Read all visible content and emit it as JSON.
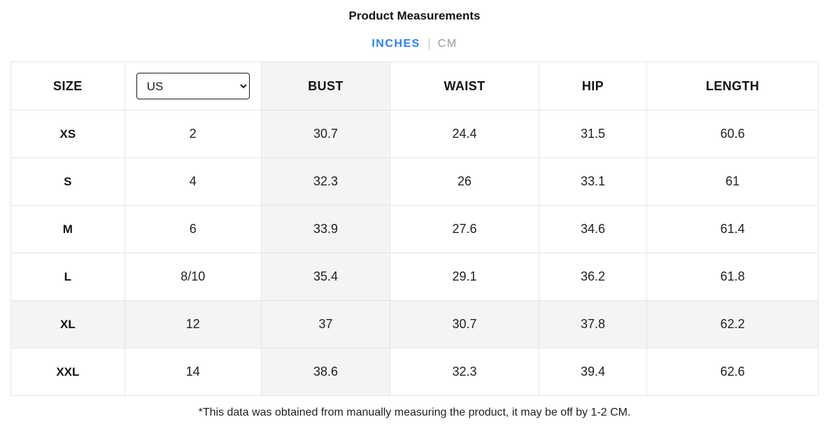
{
  "page": {
    "title": "Product Measurements",
    "unit_toggle": {
      "inches_label": "INCHES",
      "cm_label": "CM",
      "active_unit": "INCHES"
    },
    "footnote": "*This data was obtained from manually measuring the product, it may be off by 1-2 CM."
  },
  "table": {
    "headers": {
      "size": "SIZE",
      "bust": "BUST",
      "waist": "WAIST",
      "hip": "HIP",
      "length": "LENGTH"
    },
    "region_select": {
      "selected": "US"
    },
    "rows": [
      {
        "size": "XS",
        "us": "2",
        "bust": "30.7",
        "waist": "24.4",
        "hip": "31.5",
        "length": "60.6",
        "highlighted": false
      },
      {
        "size": "S",
        "us": "4",
        "bust": "32.3",
        "waist": "26",
        "hip": "33.1",
        "length": "61",
        "highlighted": false
      },
      {
        "size": "M",
        "us": "6",
        "bust": "33.9",
        "waist": "27.6",
        "hip": "34.6",
        "length": "61.4",
        "highlighted": false
      },
      {
        "size": "L",
        "us": "8/10",
        "bust": "35.4",
        "waist": "29.1",
        "hip": "36.2",
        "length": "61.8",
        "highlighted": false
      },
      {
        "size": "XL",
        "us": "12",
        "bust": "37",
        "waist": "30.7",
        "hip": "37.8",
        "length": "62.2",
        "highlighted": true
      },
      {
        "size": "XXL",
        "us": "14",
        "bust": "38.6",
        "waist": "32.3",
        "hip": "39.4",
        "length": "62.6",
        "highlighted": false
      }
    ]
  },
  "colors": {
    "accent_blue": "#2e7ff0",
    "inactive_gray": "#9b9b9b",
    "shaded_column_bg": "#f4f4f4",
    "highlight_row_bg": "#f4f4f4",
    "grid_border": "#e5e5e5",
    "text": "#1b1b1b"
  }
}
